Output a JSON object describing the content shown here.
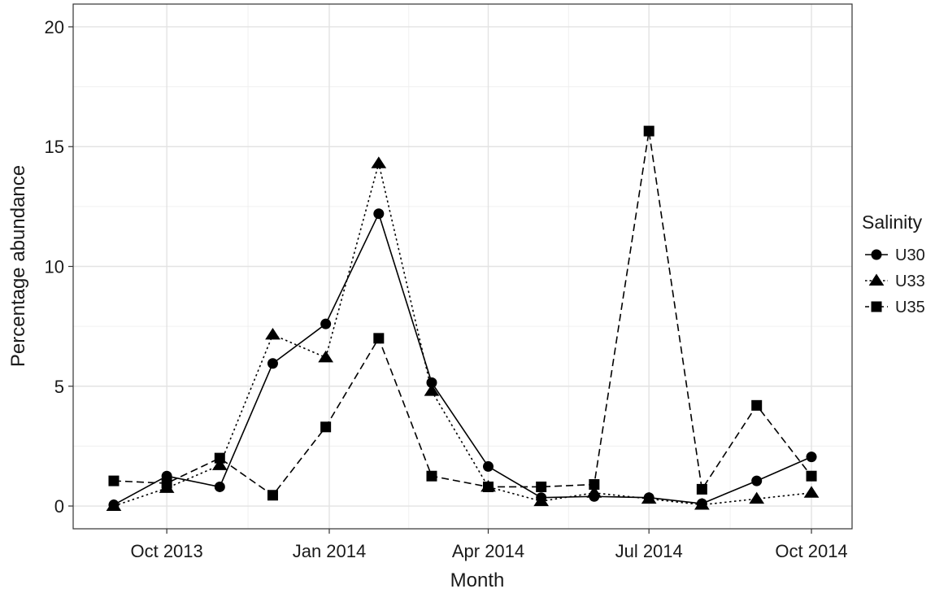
{
  "chart_data": {
    "type": "line",
    "xlabel": "Month",
    "ylabel": "Percentage abundance",
    "x_ticks": [
      "2013-10-01",
      "2014-01-01",
      "2014-04-01",
      "2014-07-01",
      "2014-10-01"
    ],
    "x_tick_labels": [
      "Oct 2013",
      "Jan 2014",
      "Apr 2014",
      "Jul 2014",
      "Oct 2014"
    ],
    "xlim": [
      "2013-08-09",
      "2014-10-24"
    ],
    "y_ticks": [
      0,
      5,
      10,
      15,
      20
    ],
    "y_tick_labels": [
      "0",
      "5",
      "10",
      "15",
      "20"
    ],
    "ylim": [
      -0.95,
      20.95
    ],
    "grid": true,
    "legend": {
      "title": "Salinity",
      "placement": "right"
    },
    "x": [
      "2013-09-01",
      "2013-10-01",
      "2013-10-31",
      "2013-11-30",
      "2013-12-30",
      "2014-01-29",
      "2014-02-28",
      "2014-04-01",
      "2014-05-01",
      "2014-05-31",
      "2014-07-01",
      "2014-07-31",
      "2014-08-31",
      "2014-10-01"
    ],
    "series": [
      {
        "name": "U30",
        "marker": "circle",
        "dash": "solid",
        "x": [
          "2013-09-01",
          "2013-10-01",
          "2013-10-31",
          "2013-11-30",
          "2013-12-30",
          "2014-01-29",
          "2014-02-28",
          "2014-04-01",
          "2014-05-01",
          "2014-05-31",
          "2014-07-01",
          "2014-07-31",
          "2014-08-31",
          "2014-10-01"
        ],
        "values": [
          0.05,
          1.25,
          0.8,
          5.95,
          7.6,
          12.2,
          5.15,
          1.65,
          0.35,
          0.4,
          0.35,
          0.1,
          1.05,
          2.05
        ]
      },
      {
        "name": "U33",
        "marker": "triangle",
        "dash": "dotted",
        "x": [
          "2013-09-01",
          "2013-10-01",
          "2013-10-31",
          "2013-11-30",
          "2013-12-30",
          "2014-01-29",
          "2014-02-28",
          "2014-04-01",
          "2014-05-01",
          "2014-05-31",
          "2014-07-01",
          "2014-07-31",
          "2014-08-31",
          "2014-10-01"
        ],
        "values": [
          0.0,
          0.75,
          1.7,
          7.15,
          6.2,
          14.3,
          4.8,
          0.8,
          0.2,
          0.55,
          0.3,
          0.05,
          0.3,
          0.55
        ]
      },
      {
        "name": "U35",
        "marker": "square",
        "dash": "dashed",
        "x": [
          "2013-09-01",
          "2013-10-01",
          "2013-10-31",
          "2013-11-30",
          "2013-12-30",
          "2014-01-29",
          "2014-02-28",
          "2014-04-01",
          "2014-05-01",
          "2014-05-31",
          "2014-07-01",
          "2014-07-31",
          "2014-08-31",
          "2014-10-01"
        ],
        "values": [
          1.05,
          0.95,
          2.0,
          0.45,
          3.3,
          7.0,
          1.25,
          0.8,
          0.8,
          0.9,
          15.65,
          0.7,
          4.2,
          1.25
        ]
      }
    ]
  }
}
